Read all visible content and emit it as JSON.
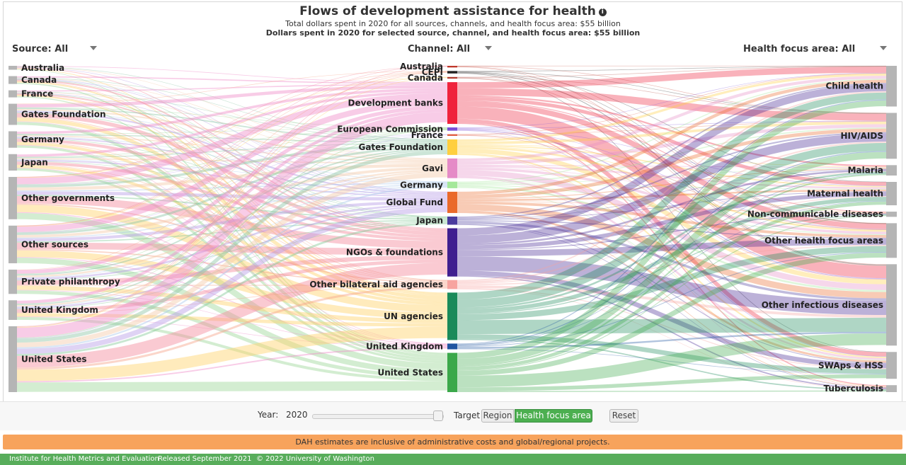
{
  "header": {
    "title": "Flows of development assistance for health",
    "subtitle_total": "Total dollars spent in 2020 for all sources, channels, and health focus area: $55 billion",
    "subtitle_selected": "Dollars spent in 2020 for selected source, channel, and health focus area: $55 billion",
    "info_icon": "i"
  },
  "selectors": {
    "source": "Source: All",
    "channel": "Channel: All",
    "focus": "Health focus area: All"
  },
  "chart_data": {
    "type": "sankey",
    "units": "share of total (approx.)",
    "sources": [
      {
        "name": "Australia",
        "value": 0.5
      },
      {
        "name": "Canada",
        "value": 1.0
      },
      {
        "name": "France",
        "value": 0.9
      },
      {
        "name": "Gates Foundation",
        "value": 2.7
      },
      {
        "name": "Germany",
        "value": 2.1
      },
      {
        "name": "Japan",
        "value": 2.1
      },
      {
        "name": "Other governments",
        "value": 5.4
      },
      {
        "name": "Other sources",
        "value": 4.8
      },
      {
        "name": "Private philanthropy",
        "value": 3.1
      },
      {
        "name": "United Kingdom",
        "value": 2.5
      },
      {
        "name": "United States",
        "value": 8.4
      }
    ],
    "channels": [
      {
        "name": "Australia",
        "value": 0.2,
        "color": "#c0392b"
      },
      {
        "name": "CEPI",
        "value": 0.3,
        "color": "#222222"
      },
      {
        "name": "Canada",
        "value": 0.2,
        "color": "#b03a2e"
      },
      {
        "name": "Development banks",
        "value": 5.1,
        "color": "#ef233c"
      },
      {
        "name": "European Commission",
        "value": 0.4,
        "color": "#7b4fd6"
      },
      {
        "name": "France",
        "value": 0.2,
        "color": "#e05a3f"
      },
      {
        "name": "Gates Foundation",
        "value": 1.9,
        "color": "#ffcf3f"
      },
      {
        "name": "Gavi",
        "value": 2.4,
        "color": "#e58bc7"
      },
      {
        "name": "Germany",
        "value": 0.8,
        "color": "#a4e89a"
      },
      {
        "name": "Global Fund",
        "value": 2.6,
        "color": "#ea6a2b"
      },
      {
        "name": "Japan",
        "value": 1.0,
        "color": "#4b3c9e"
      },
      {
        "name": "NGOs & foundations",
        "value": 5.9,
        "color": "#3f1f8f"
      },
      {
        "name": "Other bilateral aid agencies",
        "value": 1.1,
        "color": "#f7a4a0"
      },
      {
        "name": "UN agencies",
        "value": 5.8,
        "color": "#1a8a5a"
      },
      {
        "name": "United Kingdom",
        "value": 0.7,
        "color": "#1f55a0"
      },
      {
        "name": "United States",
        "value": 4.8,
        "color": "#3ba84a"
      }
    ],
    "focus_areas": [
      {
        "name": "Child health",
        "value": 4.7
      },
      {
        "name": "HIV/AIDS",
        "value": 5.3
      },
      {
        "name": "Malaria",
        "value": 1.2
      },
      {
        "name": "Maternal health",
        "value": 2.7
      },
      {
        "name": "Non-communicable diseases",
        "value": 0.6
      },
      {
        "name": "Other health focus areas",
        "value": 4.0
      },
      {
        "name": "Other infectious diseases",
        "value": 9.4
      },
      {
        "name": "SWAps & HSS",
        "value": 3.1
      },
      {
        "name": "Tuberculosis",
        "value": 0.8
      }
    ]
  },
  "controls": {
    "year_label": "Year:",
    "year": "2020",
    "year_fraction": 1.0,
    "target_label": "Target",
    "region_button": "Region",
    "focus_button": "Health focus area",
    "reset_button": "Reset"
  },
  "banner": "DAH estimates are inclusive of administrative costs and global/regional projects.",
  "footer": {
    "org": "Institute for Health Metrics and Evaluation",
    "released": "Released September 2021",
    "copyright": "© 2022 University of Washington"
  }
}
